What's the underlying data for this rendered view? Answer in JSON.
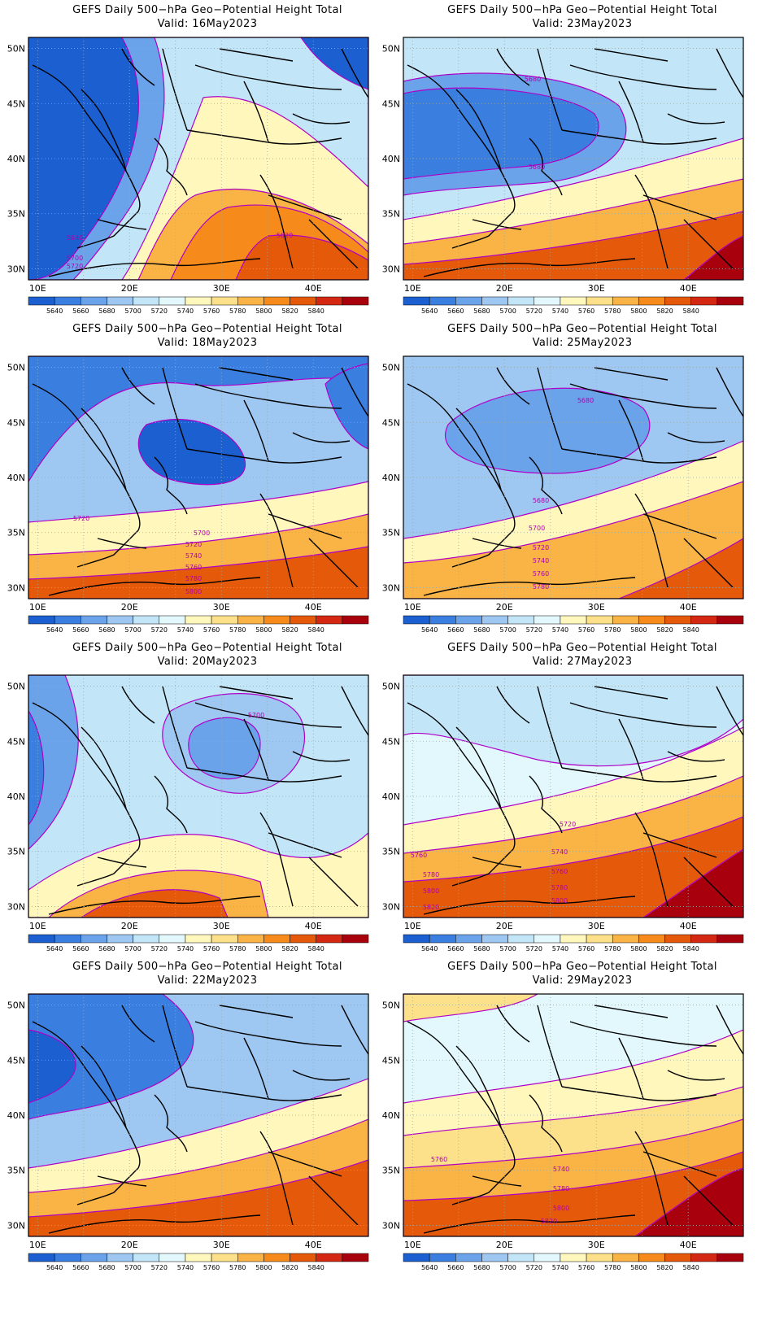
{
  "title": "GEFS Daily 500−hPa Geo−Potential Height Total",
  "lat_labels": [
    "50N",
    "45N",
    "40N",
    "35N",
    "30N"
  ],
  "lon_labels": [
    "10E",
    "20E",
    "30E",
    "40E"
  ],
  "colorbar": {
    "ticks": [
      "5640",
      "5660",
      "5680",
      "5700",
      "5720",
      "5740",
      "5760",
      "5780",
      "5800",
      "5820",
      "5840"
    ],
    "colors": [
      "#1c5fd0",
      "#3a7fe0",
      "#6aa3ea",
      "#9ec8f2",
      "#c2e6f8",
      "#e2f8fc",
      "#fff7bc",
      "#fce08a",
      "#f9b445",
      "#f68a1a",
      "#e55a0a",
      "#d42812",
      "#a8000c"
    ]
  },
  "panels": [
    {
      "valid": "Valid: 16May2023",
      "contour_labels": [
        "5640",
        "5700",
        "5720",
        "5820"
      ]
    },
    {
      "valid": "Valid: 23May2023",
      "contour_labels": [
        "5680",
        "5680"
      ]
    },
    {
      "valid": "Valid: 18May2023",
      "contour_labels": [
        "5720",
        "5700",
        "5720",
        "5740",
        "5760",
        "5780",
        "5800"
      ]
    },
    {
      "valid": "Valid: 25May2023",
      "contour_labels": [
        "5680",
        "5680",
        "5700",
        "5720",
        "5740",
        "5760",
        "5780"
      ]
    },
    {
      "valid": "Valid: 20May2023",
      "contour_labels": [
        "5700"
      ]
    },
    {
      "valid": "Valid: 27May2023",
      "contour_labels": [
        "5720",
        "5740",
        "5760",
        "5780",
        "5800",
        "5760",
        "5780",
        "5800",
        "5820"
      ]
    },
    {
      "valid": "Valid: 22May2023",
      "contour_labels": []
    },
    {
      "valid": "Valid: 29May2023",
      "contour_labels": [
        "5760",
        "5740",
        "5780",
        "5800",
        "5820"
      ]
    }
  ]
}
